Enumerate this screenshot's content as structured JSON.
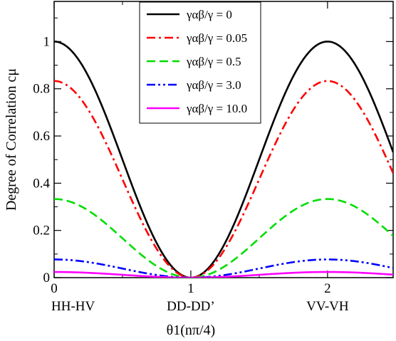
{
  "chart_data": {
    "type": "line",
    "xlabel": "θ1(nπ/4)",
    "ylabel": "Degree of Correlation cμ",
    "xlim": [
      0,
      2.48
    ],
    "ylim": [
      0,
      1.17
    ],
    "xticks": [
      "0",
      "1",
      "2"
    ],
    "yticks": [
      "0",
      "0.2",
      "0.4",
      "0.6",
      "0.8",
      "1"
    ],
    "categories": [
      "HH-HV",
      "DD-DD’",
      "VV-VH"
    ],
    "legend_position": "top-center",
    "grid": false,
    "series": [
      {
        "name": "γαβ/γ = 0",
        "amplitude": 1.0,
        "color": "#000000",
        "style": "solid",
        "values": [
          [
            0,
            1.0
          ],
          [
            0.25,
            0.854
          ],
          [
            0.5,
            0.5
          ],
          [
            0.75,
            0.146
          ],
          [
            1,
            0.0
          ],
          [
            1.25,
            0.146
          ],
          [
            1.5,
            0.5
          ],
          [
            1.75,
            0.854
          ],
          [
            2,
            1.0
          ],
          [
            2.25,
            0.854
          ],
          [
            2.48,
            0.51
          ]
        ]
      },
      {
        "name": "γαβ/γ = 0.05",
        "amplitude": 0.833,
        "color": "#ff0000",
        "style": "dashdot",
        "values": [
          [
            0,
            0.833
          ],
          [
            0.25,
            0.711
          ],
          [
            0.5,
            0.417
          ],
          [
            0.75,
            0.122
          ],
          [
            1,
            0.0
          ],
          [
            1.25,
            0.122
          ],
          [
            1.5,
            0.417
          ],
          [
            1.75,
            0.711
          ],
          [
            2,
            0.833
          ],
          [
            2.25,
            0.711
          ],
          [
            2.48,
            0.42
          ]
        ]
      },
      {
        "name": "γαβ/γ = 0.5",
        "amplitude": 0.333,
        "color": "#00dd00",
        "style": "dashed",
        "values": [
          [
            0,
            0.333
          ],
          [
            0.25,
            0.285
          ],
          [
            0.5,
            0.167
          ],
          [
            0.75,
            0.049
          ],
          [
            1,
            0.0
          ],
          [
            1.25,
            0.049
          ],
          [
            1.5,
            0.167
          ],
          [
            1.75,
            0.285
          ],
          [
            2,
            0.333
          ],
          [
            2.25,
            0.285
          ],
          [
            2.48,
            0.17
          ]
        ]
      },
      {
        "name": "γαβ/γ = 3.0",
        "amplitude": 0.077,
        "color": "#0000ff",
        "style": "dashdotdot",
        "values": [
          [
            0,
            0.077
          ],
          [
            0.25,
            0.066
          ],
          [
            0.5,
            0.038
          ],
          [
            0.75,
            0.011
          ],
          [
            1,
            0.0
          ],
          [
            1.25,
            0.011
          ],
          [
            1.5,
            0.038
          ],
          [
            1.75,
            0.066
          ],
          [
            2,
            0.077
          ],
          [
            2.25,
            0.066
          ],
          [
            2.48,
            0.04
          ]
        ]
      },
      {
        "name": "γαβ/γ = 10.0",
        "amplitude": 0.024,
        "color": "#ff00ff",
        "style": "solid",
        "values": [
          [
            0,
            0.024
          ],
          [
            0.25,
            0.02
          ],
          [
            0.5,
            0.012
          ],
          [
            0.75,
            0.003
          ],
          [
            1,
            0.0
          ],
          [
            1.25,
            0.003
          ],
          [
            1.5,
            0.012
          ],
          [
            1.75,
            0.02
          ],
          [
            2,
            0.024
          ],
          [
            2.25,
            0.02
          ],
          [
            2.48,
            0.012
          ]
        ]
      }
    ]
  }
}
